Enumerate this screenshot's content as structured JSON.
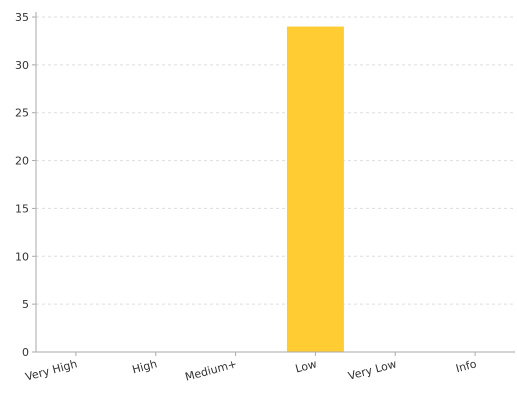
{
  "chart_data": {
    "type": "bar",
    "categories": [
      "Very High",
      "High",
      "Medium+",
      "Low",
      "Very Low",
      "Info"
    ],
    "values": [
      0,
      0,
      0,
      34,
      0,
      0
    ],
    "ylim": [
      0,
      35
    ],
    "yticks": [
      0,
      5,
      10,
      15,
      20,
      25,
      30,
      35
    ],
    "grid": true,
    "legend": "none",
    "bar_color": "#ffcc33",
    "grid_color": "#dddddd",
    "axis_color": "#aaaaaa"
  }
}
